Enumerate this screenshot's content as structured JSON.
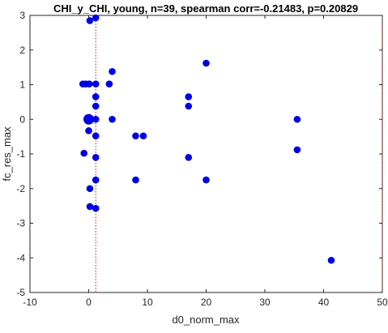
{
  "chart_data": {
    "type": "scatter",
    "title": "CHI_y_CHI, young, n=39, spearman corr=-0.21483, p=0.20829",
    "xlabel": "d0_norm_max",
    "ylabel": "fc_res_max",
    "xlim": [
      -10,
      50
    ],
    "ylim": [
      -5,
      3
    ],
    "xticks": [
      -10,
      0,
      10,
      20,
      30,
      40,
      50
    ],
    "yticks": [
      -5,
      -4,
      -3,
      -2,
      -1,
      0,
      1,
      2,
      3
    ],
    "xtick_labels": [
      "-10",
      "0",
      "10",
      "20",
      "30",
      "40",
      "50"
    ],
    "ytick_labels": [
      "-5",
      "-4",
      "-3",
      "-2",
      "-1",
      "0",
      "1",
      "2",
      "3"
    ],
    "reference_lines": [
      {
        "orientation": "vertical",
        "x": 1.2,
        "style": "dotted",
        "color": "#b22222"
      },
      {
        "orientation": "vertical",
        "x": 50,
        "style": "dotted",
        "color": "#b22222"
      }
    ],
    "marker_color": "#0000e6",
    "grid": false,
    "points": [
      {
        "x": 0,
        "y": 0,
        "size": "large"
      },
      {
        "x": 0.2,
        "y": 2.85,
        "size": "normal"
      },
      {
        "x": 1.2,
        "y": 2.93,
        "size": "normal"
      },
      {
        "x": -1,
        "y": 1.02,
        "size": "normal"
      },
      {
        "x": -0.5,
        "y": 1.02,
        "size": "normal"
      },
      {
        "x": 0.1,
        "y": 1.02,
        "size": "normal"
      },
      {
        "x": 1.2,
        "y": 1.02,
        "size": "normal"
      },
      {
        "x": 3.5,
        "y": 1.02,
        "size": "normal"
      },
      {
        "x": 4,
        "y": 1.38,
        "size": "normal"
      },
      {
        "x": 20,
        "y": 1.62,
        "size": "normal"
      },
      {
        "x": 1.2,
        "y": 0.65,
        "size": "normal"
      },
      {
        "x": 1.2,
        "y": 0.38,
        "size": "normal"
      },
      {
        "x": 17,
        "y": 0.65,
        "size": "normal"
      },
      {
        "x": 17,
        "y": 0.38,
        "size": "normal"
      },
      {
        "x": 1.2,
        "y": 0,
        "size": "normal"
      },
      {
        "x": 4,
        "y": 0,
        "size": "normal"
      },
      {
        "x": 35.5,
        "y": 0,
        "size": "normal"
      },
      {
        "x": 0,
        "y": -0.33,
        "size": "normal"
      },
      {
        "x": 1.2,
        "y": -0.48,
        "size": "normal"
      },
      {
        "x": 8,
        "y": -0.48,
        "size": "normal"
      },
      {
        "x": 9.3,
        "y": -0.48,
        "size": "normal"
      },
      {
        "x": 35.5,
        "y": -0.88,
        "size": "normal"
      },
      {
        "x": -0.8,
        "y": -0.98,
        "size": "normal"
      },
      {
        "x": 1.2,
        "y": -1.1,
        "size": "normal"
      },
      {
        "x": 17,
        "y": -1.1,
        "size": "normal"
      },
      {
        "x": 1.2,
        "y": -1.75,
        "size": "normal"
      },
      {
        "x": 8,
        "y": -1.75,
        "size": "normal"
      },
      {
        "x": 20,
        "y": -1.75,
        "size": "normal"
      },
      {
        "x": 0.2,
        "y": -2.0,
        "size": "normal"
      },
      {
        "x": 0.2,
        "y": -2.52,
        "size": "normal"
      },
      {
        "x": 1.2,
        "y": -2.57,
        "size": "normal"
      },
      {
        "x": 41.3,
        "y": -4.07,
        "size": "normal"
      }
    ]
  }
}
